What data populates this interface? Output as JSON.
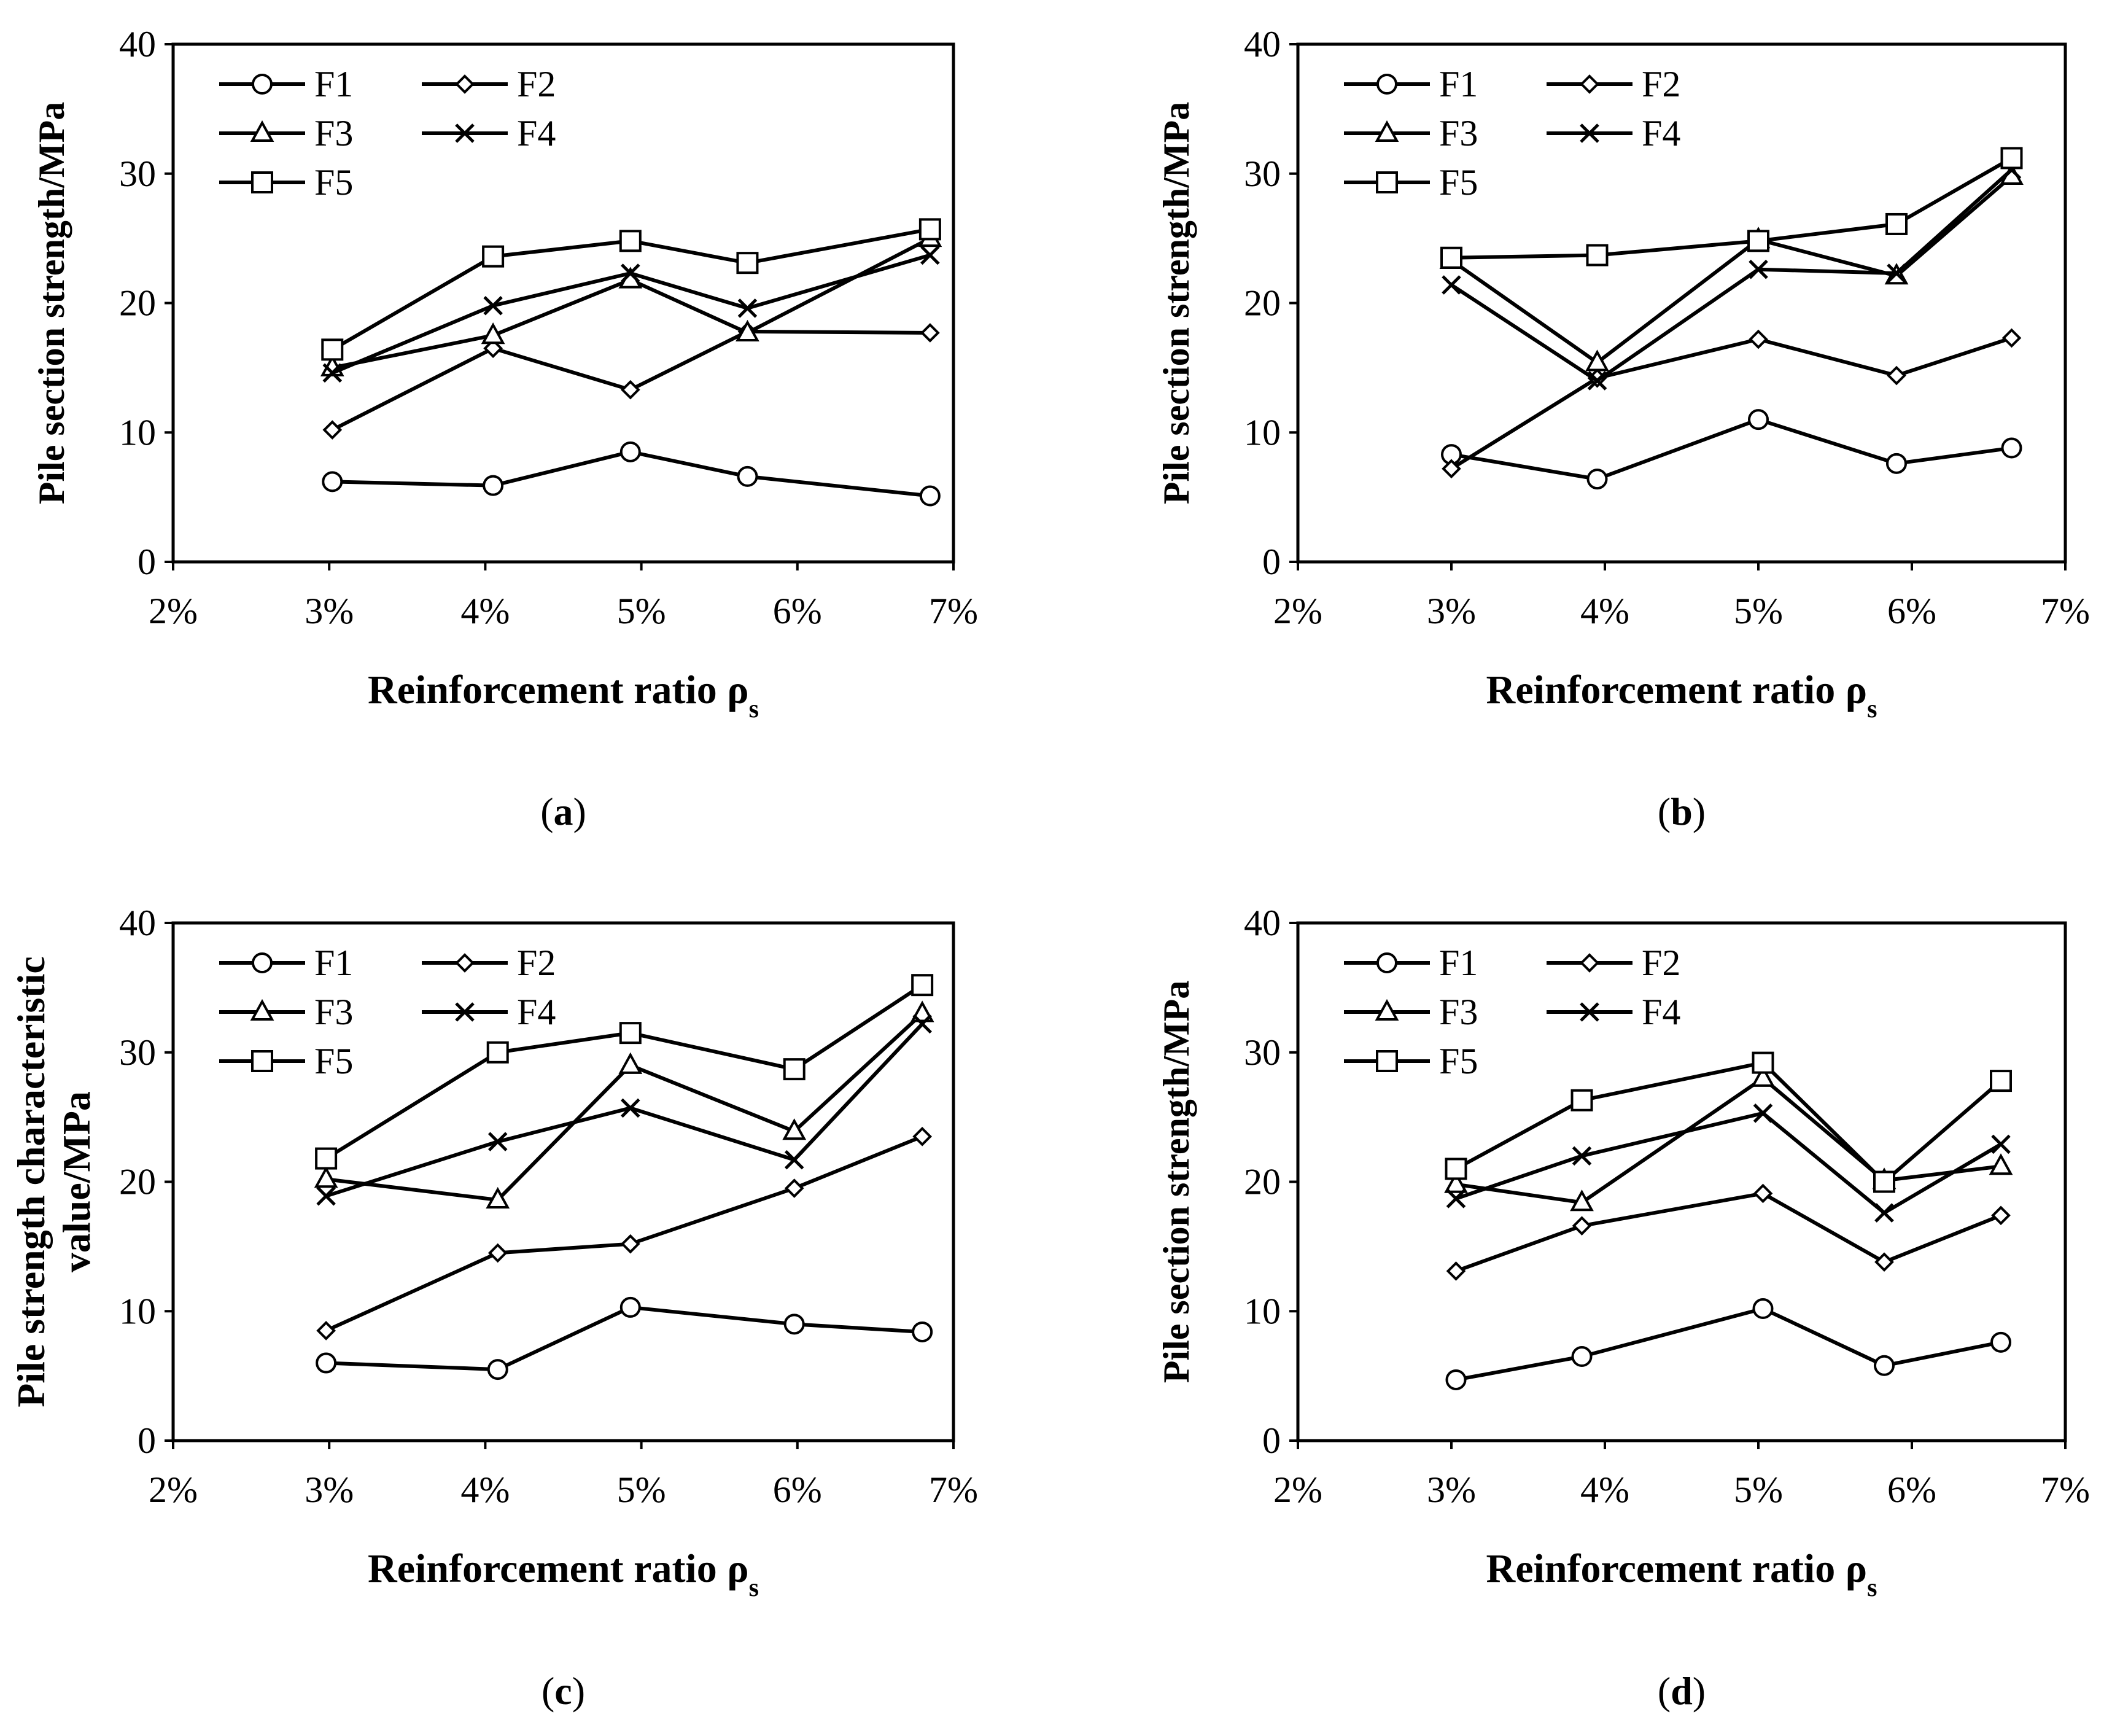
{
  "figure": {
    "panel_labels": [
      "(a)",
      "(b)",
      "(c)",
      "(d)"
    ]
  },
  "style": {
    "line_color": "#000000",
    "background": "#ffffff"
  },
  "chart_data": [
    {
      "type": "line",
      "panel": "(a)",
      "xlabel": "Reinforcement ratio ρ",
      "xlabel_sub": "s",
      "ylabel": [
        "Pile section strength/MPa"
      ],
      "xlim": [
        2,
        7
      ],
      "ylim": [
        0,
        40
      ],
      "xticks": [
        2,
        3,
        4,
        5,
        6,
        7
      ],
      "xtick_labels": [
        "2%",
        "3%",
        "4%",
        "5%",
        "6%",
        "7%"
      ],
      "yticks": [
        0,
        10,
        20,
        30,
        40
      ],
      "ytick_labels": [
        "0",
        "10",
        "20",
        "30",
        "40"
      ],
      "legend": {
        "placement": "top-left"
      },
      "series": [
        {
          "name": "F1",
          "marker": "circle",
          "x": [
            3.02,
            4.05,
            4.93,
            5.68,
            6.85
          ],
          "y": [
            6.2,
            5.9,
            8.5,
            6.6,
            5.1
          ]
        },
        {
          "name": "F2",
          "marker": "diamond",
          "x": [
            3.02,
            4.05,
            4.93,
            5.68,
            6.85
          ],
          "y": [
            10.2,
            16.5,
            13.3,
            17.8,
            17.7
          ]
        },
        {
          "name": "F3",
          "marker": "triangle",
          "x": [
            3.02,
            4.05,
            4.93,
            5.68,
            6.85
          ],
          "y": [
            15.0,
            17.5,
            21.8,
            17.7,
            25.0
          ]
        },
        {
          "name": "F4",
          "marker": "cross",
          "x": [
            3.02,
            4.05,
            4.93,
            5.68,
            6.85
          ],
          "y": [
            14.6,
            19.8,
            22.3,
            19.6,
            23.7
          ]
        },
        {
          "name": "F5",
          "marker": "square",
          "x": [
            3.02,
            4.05,
            4.93,
            5.68,
            6.85
          ],
          "y": [
            16.4,
            23.6,
            24.8,
            23.1,
            25.7
          ]
        }
      ]
    },
    {
      "type": "line",
      "panel": "(b)",
      "xlabel": "Reinforcement ratio ρ",
      "xlabel_sub": "s",
      "ylabel": [
        "Pile section strength/MPa"
      ],
      "xlim": [
        2,
        7
      ],
      "ylim": [
        0,
        40
      ],
      "xticks": [
        2,
        3,
        4,
        5,
        6,
        7
      ],
      "xtick_labels": [
        "2%",
        "3%",
        "4%",
        "5%",
        "6%",
        "7%"
      ],
      "yticks": [
        0,
        10,
        20,
        30,
        40
      ],
      "ytick_labels": [
        "0",
        "10",
        "20",
        "30",
        "40"
      ],
      "legend": {
        "placement": "top-left"
      },
      "series": [
        {
          "name": "F1",
          "marker": "circle",
          "x": [
            3.0,
            3.95,
            5.0,
            5.9,
            6.65
          ],
          "y": [
            8.3,
            6.4,
            11.0,
            7.6,
            8.8
          ]
        },
        {
          "name": "F2",
          "marker": "diamond",
          "x": [
            3.0,
            3.95,
            5.0,
            5.9,
            6.65
          ],
          "y": [
            7.2,
            14.2,
            17.2,
            14.4,
            17.3
          ]
        },
        {
          "name": "F3",
          "marker": "triangle",
          "x": [
            3.0,
            3.95,
            5.0,
            5.9,
            6.65
          ],
          "y": [
            23.3,
            15.4,
            24.9,
            22.1,
            29.8
          ]
        },
        {
          "name": "F4",
          "marker": "cross",
          "x": [
            3.0,
            3.95,
            5.0,
            5.9,
            6.65
          ],
          "y": [
            21.4,
            14.0,
            22.6,
            22.3,
            30.3
          ]
        },
        {
          "name": "F5",
          "marker": "square",
          "x": [
            3.0,
            3.95,
            5.0,
            5.9,
            6.65
          ],
          "y": [
            23.5,
            23.7,
            24.8,
            26.1,
            31.2
          ]
        }
      ]
    },
    {
      "type": "line",
      "panel": "(c)",
      "xlabel": "Reinforcement ratio ρ",
      "xlabel_sub": "s",
      "ylabel": [
        "Pile strength characteristic",
        "value/MPa"
      ],
      "xlim": [
        2,
        7
      ],
      "ylim": [
        0,
        40
      ],
      "xticks": [
        2,
        3,
        4,
        5,
        6,
        7
      ],
      "xtick_labels": [
        "2%",
        "3%",
        "4%",
        "5%",
        "6%",
        "7%"
      ],
      "yticks": [
        0,
        10,
        20,
        30,
        40
      ],
      "ytick_labels": [
        "0",
        "10",
        "20",
        "30",
        "40"
      ],
      "legend": {
        "placement": "top-left"
      },
      "series": [
        {
          "name": "F1",
          "marker": "circle",
          "x": [
            2.98,
            4.08,
            4.93,
            5.98,
            6.8
          ],
          "y": [
            6.0,
            5.5,
            10.3,
            9.0,
            8.4
          ]
        },
        {
          "name": "F2",
          "marker": "diamond",
          "x": [
            2.98,
            4.08,
            4.93,
            5.98,
            6.8
          ],
          "y": [
            8.5,
            14.5,
            15.2,
            19.5,
            23.5
          ]
        },
        {
          "name": "F3",
          "marker": "triangle",
          "x": [
            2.98,
            4.08,
            4.93,
            5.98,
            6.8
          ],
          "y": [
            20.2,
            18.6,
            29.0,
            23.9,
            33.0
          ]
        },
        {
          "name": "F4",
          "marker": "cross",
          "x": [
            2.98,
            4.08,
            4.93,
            5.98,
            6.8
          ],
          "y": [
            18.9,
            23.1,
            25.7,
            21.7,
            32.2
          ]
        },
        {
          "name": "F5",
          "marker": "square",
          "x": [
            2.98,
            4.08,
            4.93,
            5.98,
            6.8
          ],
          "y": [
            21.8,
            30.0,
            31.5,
            28.7,
            35.2
          ]
        }
      ]
    },
    {
      "type": "line",
      "panel": "(d)",
      "xlabel": "Reinforcement ratio ρ",
      "xlabel_sub": "s",
      "ylabel": [
        "Pile section strength/MPa"
      ],
      "xlim": [
        2,
        7
      ],
      "ylim": [
        0,
        40
      ],
      "xticks": [
        2,
        3,
        4,
        5,
        6,
        7
      ],
      "xtick_labels": [
        "2%",
        "3%",
        "4%",
        "5%",
        "6%",
        "7%"
      ],
      "yticks": [
        0,
        10,
        20,
        30,
        40
      ],
      "ytick_labels": [
        "0",
        "10",
        "20",
        "30",
        "40"
      ],
      "legend": {
        "placement": "top-left"
      },
      "series": [
        {
          "name": "F1",
          "marker": "circle",
          "x": [
            3.03,
            3.85,
            5.03,
            5.82,
            6.58
          ],
          "y": [
            4.7,
            6.5,
            10.2,
            5.8,
            7.6
          ]
        },
        {
          "name": "F2",
          "marker": "diamond",
          "x": [
            3.03,
            3.85,
            5.03,
            5.82,
            6.58
          ],
          "y": [
            13.1,
            16.6,
            19.1,
            13.8,
            17.4
          ]
        },
        {
          "name": "F3",
          "marker": "triangle",
          "x": [
            3.03,
            3.85,
            5.03,
            5.82,
            6.58
          ],
          "y": [
            19.8,
            18.4,
            28.0,
            20.1,
            21.2
          ]
        },
        {
          "name": "F4",
          "marker": "cross",
          "x": [
            3.03,
            3.85,
            5.03,
            5.82,
            6.58
          ],
          "y": [
            18.7,
            22.0,
            25.3,
            17.6,
            22.9
          ]
        },
        {
          "name": "F5",
          "marker": "square",
          "x": [
            3.03,
            3.85,
            5.03,
            5.82,
            6.58
          ],
          "y": [
            21.0,
            26.3,
            29.2,
            20.0,
            27.8
          ]
        }
      ]
    }
  ]
}
